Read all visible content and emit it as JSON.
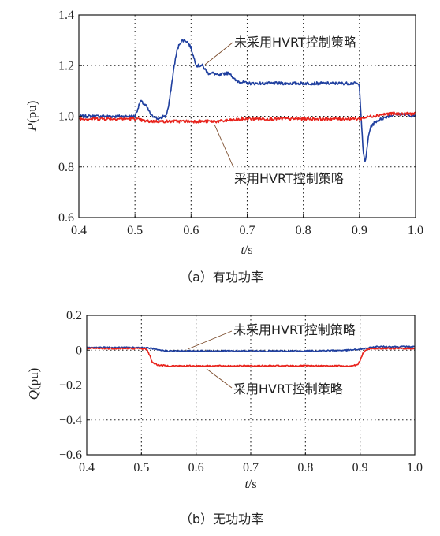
{
  "colors": {
    "blue": "#1f3f9f",
    "red": "#e8231c",
    "frame": "#1a1a1a",
    "grid": "#222222"
  },
  "chart_data": [
    {
      "type": "line",
      "caption": "（a）有功功率",
      "ylabel": "P(pu)",
      "xlabel": "t/s",
      "xlim": [
        0.4,
        1.0
      ],
      "ylim": [
        0.6,
        1.4
      ],
      "xticks": [
        "0.4",
        "0.5",
        "0.6",
        "0.7",
        "0.8",
        "0.9",
        "1.0"
      ],
      "yticks": [
        "0.6",
        "0.8",
        "1.0",
        "1.2",
        "1.4"
      ],
      "grid": true,
      "annotations": [
        "未采用HVRT控制策略",
        "采用HVRT控制策略"
      ],
      "series": [
        {
          "color": "#1f3f9f",
          "x": [
            0.4,
            0.45,
            0.49,
            0.5,
            0.505,
            0.51,
            0.515,
            0.52,
            0.525,
            0.53,
            0.535,
            0.54,
            0.545,
            0.55,
            0.555,
            0.56,
            0.565,
            0.57,
            0.575,
            0.58,
            0.585,
            0.59,
            0.595,
            0.6,
            0.605,
            0.61,
            0.62,
            0.63,
            0.64,
            0.65,
            0.66,
            0.67,
            0.675,
            0.68,
            0.7,
            0.75,
            0.8,
            0.85,
            0.895,
            0.9,
            0.903,
            0.905,
            0.907,
            0.91,
            0.913,
            0.916,
            0.92,
            0.93,
            0.94,
            0.95,
            0.97,
            1.0
          ],
          "y": [
            1.0,
            1.0,
            1.0,
            1.0,
            1.03,
            1.06,
            1.05,
            1.04,
            1.02,
            1.0,
            1.0,
            0.99,
            0.99,
            1.0,
            1.0,
            1.04,
            1.12,
            1.2,
            1.26,
            1.29,
            1.3,
            1.3,
            1.29,
            1.27,
            1.23,
            1.2,
            1.2,
            1.17,
            1.17,
            1.16,
            1.17,
            1.17,
            1.15,
            1.14,
            1.13,
            1.13,
            1.13,
            1.13,
            1.13,
            1.12,
            1.0,
            0.92,
            0.85,
            0.82,
            0.86,
            0.92,
            0.96,
            0.98,
            0.99,
            1.0,
            1.01,
            1.0
          ]
        },
        {
          "color": "#e8231c",
          "x": [
            0.4,
            0.45,
            0.5,
            0.52,
            0.55,
            0.6,
            0.65,
            0.7,
            0.75,
            0.8,
            0.85,
            0.9,
            0.92,
            0.95,
            1.0
          ],
          "y": [
            0.99,
            0.99,
            0.99,
            0.98,
            0.98,
            0.98,
            0.98,
            0.99,
            0.99,
            0.99,
            0.99,
            0.99,
            1.0,
            1.01,
            1.01
          ]
        }
      ]
    },
    {
      "type": "line",
      "caption": "（b）无功功率",
      "ylabel": "Q(pu)",
      "xlabel": "t/s",
      "xlim": [
        0.4,
        1.0
      ],
      "ylim": [
        -0.6,
        0.2
      ],
      "xticks": [
        "0.4",
        "0.5",
        "0.6",
        "0.7",
        "0.8",
        "0.9",
        "1.0"
      ],
      "yticks": [
        "0.2",
        "0",
        "−0.2",
        "−0.4",
        "−0.6"
      ],
      "grid": true,
      "annotations": [
        "未采用HVRT控制策略",
        "采用HVRT控制策略"
      ],
      "series": [
        {
          "color": "#1f3f9f",
          "x": [
            0.4,
            0.45,
            0.5,
            0.52,
            0.53,
            0.55,
            0.6,
            0.7,
            0.8,
            0.88,
            0.9,
            0.91,
            0.93,
            1.0
          ],
          "y": [
            0.015,
            0.015,
            0.015,
            0.01,
            0.0,
            -0.005,
            -0.005,
            -0.005,
            -0.005,
            0.0,
            0.005,
            0.01,
            0.02,
            0.02
          ]
        },
        {
          "color": "#e8231c",
          "x": [
            0.4,
            0.45,
            0.5,
            0.51,
            0.515,
            0.52,
            0.53,
            0.55,
            0.6,
            0.7,
            0.8,
            0.88,
            0.895,
            0.9,
            0.905,
            0.91,
            0.92,
            0.95,
            1.0
          ],
          "y": [
            0.01,
            0.01,
            0.01,
            0.005,
            -0.03,
            -0.07,
            -0.085,
            -0.09,
            -0.09,
            -0.09,
            -0.09,
            -0.09,
            -0.085,
            -0.06,
            -0.02,
            0.0,
            0.01,
            0.01,
            0.01
          ]
        }
      ]
    }
  ]
}
